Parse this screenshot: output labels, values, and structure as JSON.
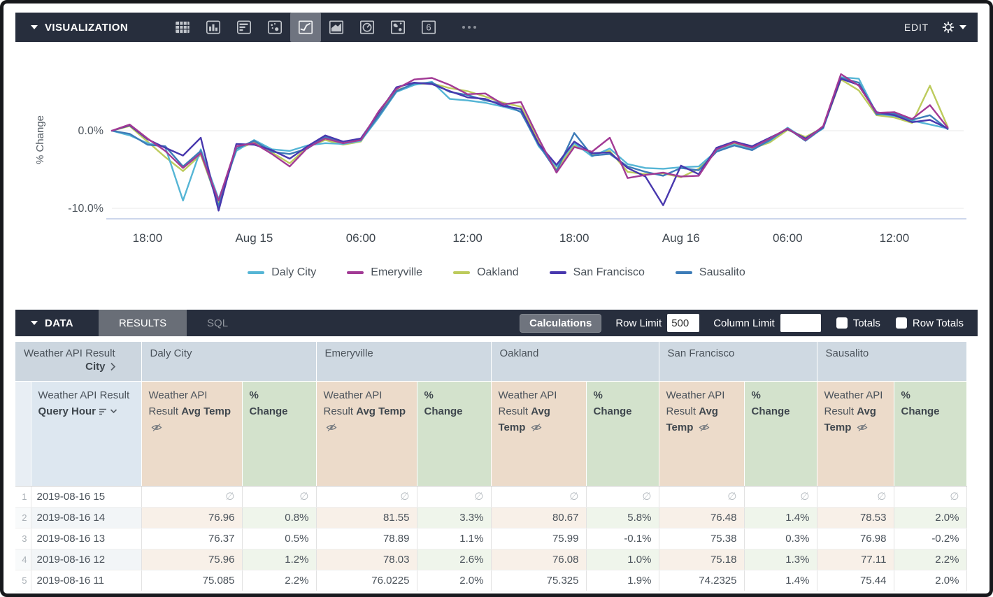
{
  "viz_bar": {
    "title": "VISUALIZATION",
    "edit_label": "EDIT",
    "icons": [
      "table",
      "column-chart",
      "bar-chart",
      "scatter-chart",
      "line-chart",
      "area-chart",
      "pie-chart",
      "map",
      "single-value"
    ],
    "selected_icon": "line-chart"
  },
  "chart_data": {
    "type": "line",
    "ylabel": "% Change",
    "y_ticks": [
      {
        "label": "0.0%",
        "value": 0
      },
      {
        "label": "-10.0%",
        "value": -10
      }
    ],
    "x_tick_labels": [
      "18:00",
      "Aug 15",
      "06:00",
      "12:00",
      "18:00",
      "Aug 16",
      "06:00",
      "12:00"
    ],
    "x_tick_hours": [
      2,
      8,
      14,
      20,
      26,
      32,
      38,
      44
    ],
    "x_hours_total": 47,
    "ylim": [
      -11.5,
      8.5
    ],
    "grid": true,
    "legend_position": "bottom",
    "series": [
      {
        "name": "Daly City",
        "color": "#55b5d5",
        "values": [
          0.0,
          -0.6,
          -1.6,
          -2.1,
          -9.0,
          -2.4,
          -8.8,
          -2.6,
          -1.2,
          -2.4,
          -2.6,
          -1.9,
          -1.6,
          -1.7,
          -1.3,
          1.7,
          5.0,
          5.9,
          6.3,
          4.1,
          3.9,
          3.6,
          3.1,
          2.5,
          -2.0,
          -4.6,
          -1.6,
          -3.3,
          -2.3,
          -4.3,
          -4.8,
          -4.9,
          -4.7,
          -4.6,
          -2.6,
          -1.8,
          -2.4,
          -1.3,
          0.4,
          -1.1,
          0.3,
          6.9,
          6.7,
          2.2,
          1.9,
          1.3,
          0.8,
          0.3
        ]
      },
      {
        "name": "Emeryville",
        "color": "#a23a95",
        "values": [
          0.0,
          0.8,
          -1.0,
          -2.6,
          -4.8,
          -2.9,
          -9.0,
          -2.0,
          -1.6,
          -3.0,
          -4.6,
          -2.2,
          -1.0,
          -1.6,
          -1.2,
          2.5,
          5.4,
          6.6,
          6.8,
          5.9,
          4.7,
          4.8,
          3.4,
          3.7,
          -1.0,
          -5.4,
          -2.1,
          -2.7,
          -0.9,
          -6.1,
          -5.7,
          -5.4,
          -5.9,
          -5.8,
          -2.4,
          -1.5,
          -2.2,
          -1.0,
          0.3,
          -1.2,
          0.6,
          7.3,
          5.8,
          2.3,
          2.4,
          1.5,
          3.3,
          0.4
        ]
      },
      {
        "name": "Oakland",
        "color": "#bdcb5c",
        "values": [
          0.0,
          0.6,
          -1.4,
          -3.4,
          -5.2,
          -3.1,
          -9.4,
          -2.4,
          -1.5,
          -2.8,
          -4.2,
          -2.1,
          -1.2,
          -1.8,
          -1.4,
          2.1,
          5.2,
          6.0,
          6.1,
          5.5,
          5.1,
          4.4,
          3.6,
          3.1,
          -1.3,
          -5.0,
          -1.9,
          -3.0,
          -2.6,
          -5.3,
          -5.6,
          -5.5,
          -6.0,
          -4.9,
          -2.5,
          -1.7,
          -2.3,
          -1.5,
          0.1,
          -0.8,
          0.4,
          6.6,
          5.2,
          2.0,
          1.7,
          1.0,
          5.8,
          0.5
        ]
      },
      {
        "name": "San Francisco",
        "color": "#4838ae",
        "values": [
          0.0,
          0.7,
          -1.1,
          -2.2,
          -3.2,
          -0.9,
          -10.3,
          -1.7,
          -1.8,
          -2.5,
          -3.6,
          -2.0,
          -0.6,
          -1.4,
          -1.0,
          2.3,
          5.6,
          6.2,
          6.0,
          5.1,
          4.3,
          4.1,
          3.2,
          2.8,
          -1.7,
          -4.4,
          -1.4,
          -2.9,
          -2.8,
          -4.8,
          -5.9,
          -9.6,
          -4.5,
          -5.6,
          -2.2,
          -1.4,
          -2.0,
          -0.9,
          0.2,
          -1.0,
          0.5,
          6.7,
          5.9,
          2.4,
          2.0,
          1.1,
          1.4,
          0.3
        ]
      },
      {
        "name": "Sausalito",
        "color": "#3d7cb8",
        "values": [
          0.0,
          -0.4,
          -1.8,
          -2.0,
          -4.6,
          -2.6,
          -9.7,
          -2.3,
          -1.3,
          -2.7,
          -3.0,
          -2.3,
          -0.8,
          -1.6,
          -1.2,
          1.9,
          5.1,
          6.1,
          6.2,
          5.0,
          4.6,
          3.9,
          3.5,
          2.4,
          -1.8,
          -5.2,
          -0.3,
          -3.2,
          -3.0,
          -4.6,
          -5.3,
          -5.8,
          -4.8,
          -5.1,
          -2.7,
          -1.9,
          -2.5,
          -1.2,
          0.3,
          -1.3,
          0.4,
          6.8,
          6.2,
          2.1,
          2.2,
          1.4,
          2.0,
          0.2
        ]
      }
    ]
  },
  "data_bar": {
    "title": "DATA",
    "tabs": [
      {
        "label": "RESULTS",
        "active": true
      },
      {
        "label": "SQL",
        "active": false
      }
    ],
    "calculations_label": "Calculations",
    "row_limit_label": "Row Limit",
    "row_limit_value": "500",
    "column_limit_label": "Column Limit",
    "column_limit_value": "",
    "totals_label": "Totals",
    "row_totals_label": "Row Totals"
  },
  "table": {
    "pivot_header": {
      "prefix": "Weather API Result",
      "field": "City"
    },
    "row_header": {
      "prefix": "Weather API Result",
      "field": "Query Hour"
    },
    "measure_header": {
      "prefix": "Weather API Result",
      "field": "Avg Temp"
    },
    "calc_header": "% Change",
    "cities": [
      "Daly City",
      "Emeryville",
      "Oakland",
      "San Francisco",
      "Sausalito"
    ],
    "null_symbol": "∅",
    "rows": [
      {
        "num": "1",
        "hour": "2019-08-16 15",
        "cells": [
          null,
          null,
          null,
          null,
          null,
          null,
          null,
          null,
          null,
          null
        ]
      },
      {
        "num": "2",
        "hour": "2019-08-16 14",
        "cells": [
          "76.96",
          "0.8%",
          "81.55",
          "3.3%",
          "80.67",
          "5.8%",
          "76.48",
          "1.4%",
          "78.53",
          "2.0%"
        ]
      },
      {
        "num": "3",
        "hour": "2019-08-16 13",
        "cells": [
          "76.37",
          "0.5%",
          "78.89",
          "1.1%",
          "75.99",
          "-0.1%",
          "75.38",
          "0.3%",
          "76.98",
          "-0.2%"
        ]
      },
      {
        "num": "4",
        "hour": "2019-08-16 12",
        "cells": [
          "75.96",
          "1.2%",
          "78.03",
          "2.6%",
          "76.08",
          "1.0%",
          "75.18",
          "1.3%",
          "77.11",
          "2.2%"
        ]
      },
      {
        "num": "5",
        "hour": "2019-08-16 11",
        "cells": [
          "75.085",
          "2.2%",
          "76.0225",
          "2.0%",
          "75.325",
          "1.9%",
          "74.2325",
          "1.4%",
          "75.44",
          "2.0%"
        ]
      }
    ]
  }
}
